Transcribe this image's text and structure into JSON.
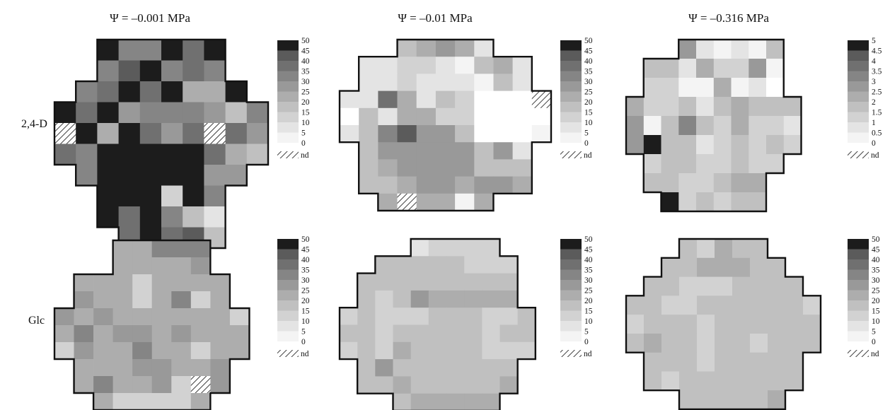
{
  "column_titles": [
    "Ψ = –0.001 MPa",
    "Ψ = –0.01 MPa",
    "Ψ = –0.316 MPa"
  ],
  "row_labels": [
    "2,4-D",
    "Glc"
  ],
  "legend_nd": "nd",
  "gray_palette": [
    "#f4f4f4",
    "#e4e4e4",
    "#d2d2d2",
    "#c0c0c0",
    "#adadad",
    "#999999",
    "#858585",
    "#707070",
    "#5b5b5b",
    "#1c1c1c"
  ],
  "chart_data": [
    {
      "type": "heatmap",
      "row": "2,4-D",
      "column": "Ψ = –0.001 MPa",
      "scale_ticks": [
        "50",
        "45",
        "40",
        "35",
        "30",
        "25",
        "20",
        "15",
        "10",
        "5",
        "0"
      ],
      "vmax": 50,
      "grid": [
        [
          null,
          null,
          50,
          35,
          35,
          50,
          38,
          50,
          null,
          null
        ],
        [
          null,
          null,
          32,
          42,
          50,
          32,
          38,
          32,
          null,
          null
        ],
        [
          null,
          32,
          40,
          50,
          38,
          50,
          22,
          22,
          50,
          null
        ],
        [
          50,
          36,
          50,
          30,
          32,
          34,
          32,
          30,
          20,
          32
        ],
        [
          "nd",
          50,
          22,
          50,
          38,
          30,
          40,
          "nd",
          36,
          28
        ],
        [
          36,
          32,
          50,
          50,
          50,
          50,
          50,
          38,
          22,
          20
        ],
        [
          null,
          32,
          50,
          50,
          50,
          50,
          50,
          30,
          30,
          null
        ],
        [
          null,
          null,
          50,
          50,
          50,
          15,
          50,
          32,
          null,
          null
        ],
        [
          null,
          null,
          50,
          40,
          50,
          32,
          20,
          10,
          null,
          null
        ],
        [
          null,
          null,
          null,
          40,
          50,
          40,
          42,
          20,
          null,
          null
        ]
      ]
    },
    {
      "type": "heatmap",
      "row": "2,4-D",
      "column": "Ψ = –0.01 MPa",
      "scale_ticks": [
        "50",
        "45",
        "40",
        "35",
        "30",
        "25",
        "20",
        "15",
        "10",
        "5",
        "0"
      ],
      "vmax": 50,
      "grid": [
        [
          null,
          null,
          null,
          20,
          25,
          28,
          22,
          8,
          null,
          null,
          null
        ],
        [
          null,
          8,
          8,
          12,
          12,
          8,
          5,
          18,
          24,
          8,
          null
        ],
        [
          null,
          8,
          8,
          12,
          8,
          8,
          8,
          5,
          20,
          8,
          null
        ],
        [
          8,
          8,
          38,
          22,
          8,
          20,
          12,
          0,
          0,
          0,
          "nd"
        ],
        [
          0,
          20,
          10,
          24,
          22,
          14,
          12,
          0,
          0,
          0,
          0
        ],
        [
          8,
          20,
          34,
          42,
          28,
          26,
          18,
          0,
          0,
          0,
          5
        ],
        [
          null,
          18,
          26,
          30,
          30,
          26,
          30,
          16,
          26,
          10,
          null
        ],
        [
          null,
          18,
          24,
          28,
          30,
          28,
          30,
          18,
          18,
          18,
          null
        ],
        [
          null,
          18,
          16,
          24,
          30,
          28,
          24,
          30,
          26,
          24,
          null
        ],
        [
          null,
          null,
          24,
          "nd",
          24,
          24,
          4,
          22,
          null,
          null,
          null
        ]
      ]
    },
    {
      "type": "heatmap",
      "row": "2,4-D",
      "column": "Ψ = –0.316 MPa",
      "scale_ticks": [
        "5",
        "4.5",
        "4",
        "3.5",
        "3",
        "2.5",
        "2",
        "1.5",
        "1",
        "0.5",
        "0",
        "nd"
      ],
      "vmax": 5,
      "grid": [
        [
          null,
          null,
          null,
          3,
          1,
          0.5,
          1,
          0.5,
          2,
          null,
          null,
          null
        ],
        [
          null,
          2,
          2,
          1,
          2.5,
          1.5,
          1.5,
          3,
          0.5,
          null,
          null,
          null
        ],
        [
          null,
          1.5,
          1.5,
          0.5,
          0.5,
          2.5,
          0.5,
          1,
          0,
          null,
          null,
          null
        ],
        [
          2.5,
          1.5,
          1.5,
          2,
          1,
          2,
          2.5,
          2,
          2,
          2,
          null,
          null
        ],
        [
          3,
          0.5,
          2,
          3.5,
          2,
          1.5,
          2.5,
          1.5,
          1.5,
          1,
          null,
          null
        ],
        [
          3,
          5,
          2,
          2,
          1,
          1.5,
          2,
          1.5,
          2,
          1.5,
          null,
          null
        ],
        [
          null,
          1.5,
          2,
          2,
          1.5,
          1.5,
          2,
          1.5,
          1.5,
          null,
          null,
          null
        ],
        [
          null,
          2,
          2,
          1.5,
          1.5,
          2,
          2.5,
          2.5,
          null,
          null,
          null,
          null
        ],
        [
          null,
          null,
          5,
          1.5,
          2,
          1.5,
          2,
          2,
          null,
          null,
          null,
          null
        ]
      ]
    },
    {
      "type": "heatmap",
      "row": "Glc",
      "column": "Ψ = –0.001 MPa",
      "scale_ticks": [
        "50",
        "45",
        "40",
        "35",
        "30",
        "25",
        "20",
        "15",
        "10",
        "5",
        "0"
      ],
      "vmax": 50,
      "grid": [
        [
          null,
          null,
          null,
          22,
          22,
          32,
          32,
          32,
          null,
          null,
          null
        ],
        [
          null,
          null,
          null,
          22,
          22,
          22,
          22,
          28,
          null,
          null,
          null
        ],
        [
          null,
          22,
          22,
          22,
          15,
          22,
          22,
          22,
          22,
          null,
          null
        ],
        [
          null,
          28,
          22,
          22,
          15,
          22,
          32,
          15,
          22,
          null,
          null
        ],
        [
          26,
          22,
          26,
          22,
          22,
          22,
          22,
          22,
          22,
          15,
          null
        ],
        [
          22,
          32,
          22,
          30,
          30,
          22,
          30,
          22,
          22,
          22,
          null
        ],
        [
          15,
          26,
          22,
          22,
          32,
          22,
          22,
          15,
          22,
          22,
          null
        ],
        [
          null,
          22,
          22,
          22,
          26,
          26,
          22,
          22,
          26,
          null,
          null
        ],
        [
          null,
          22,
          32,
          22,
          22,
          26,
          15,
          "nd",
          26,
          null,
          null
        ],
        [
          null,
          null,
          22,
          15,
          15,
          15,
          15,
          22,
          null,
          null,
          null
        ]
      ]
    },
    {
      "type": "heatmap",
      "row": "Glc",
      "column": "Ψ = –0.01 MPa",
      "scale_ticks": [
        "50",
        "45",
        "40",
        "35",
        "30",
        "25",
        "20",
        "15",
        "10",
        "5",
        "0"
      ],
      "vmax": 50,
      "grid": [
        [
          null,
          null,
          null,
          null,
          10,
          15,
          15,
          15,
          15,
          null,
          null,
          null
        ],
        [
          null,
          null,
          18,
          18,
          18,
          18,
          18,
          15,
          15,
          15,
          null,
          null
        ],
        [
          null,
          18,
          18,
          18,
          18,
          18,
          18,
          18,
          18,
          18,
          null,
          null
        ],
        [
          null,
          18,
          15,
          18,
          28,
          22,
          22,
          22,
          22,
          22,
          null,
          null
        ],
        [
          15,
          18,
          15,
          15,
          15,
          18,
          18,
          18,
          15,
          15,
          18,
          null
        ],
        [
          18,
          18,
          15,
          18,
          18,
          18,
          18,
          18,
          15,
          18,
          18,
          null
        ],
        [
          15,
          18,
          15,
          24,
          18,
          18,
          18,
          18,
          15,
          15,
          15,
          null
        ],
        [
          null,
          18,
          26,
          18,
          18,
          18,
          18,
          18,
          18,
          18,
          null,
          null
        ],
        [
          null,
          18,
          18,
          22,
          18,
          18,
          18,
          18,
          18,
          22,
          null,
          null
        ],
        [
          null,
          null,
          null,
          18,
          22,
          22,
          22,
          22,
          22,
          null,
          null,
          null
        ]
      ]
    },
    {
      "type": "heatmap",
      "row": "Glc",
      "column": "Ψ = –0.316 MPa",
      "scale_ticks": [
        "50",
        "45",
        "40",
        "35",
        "30",
        "25",
        "20",
        "15",
        "10",
        "5",
        "0",
        "nd"
      ],
      "vmax": 50,
      "grid": [
        [
          null,
          null,
          null,
          18,
          15,
          22,
          18,
          18,
          null,
          null,
          null,
          null
        ],
        [
          null,
          null,
          18,
          18,
          22,
          22,
          22,
          18,
          18,
          null,
          null,
          null
        ],
        [
          null,
          18,
          18,
          15,
          15,
          15,
          18,
          18,
          18,
          18,
          null,
          null
        ],
        [
          18,
          18,
          15,
          15,
          18,
          18,
          18,
          18,
          18,
          18,
          15,
          null
        ],
        [
          15,
          18,
          18,
          18,
          15,
          18,
          18,
          18,
          18,
          18,
          18,
          null
        ],
        [
          18,
          22,
          18,
          18,
          15,
          18,
          18,
          15,
          18,
          18,
          18,
          null
        ],
        [
          null,
          18,
          18,
          18,
          15,
          18,
          18,
          18,
          18,
          18,
          null,
          null
        ],
        [
          null,
          18,
          15,
          18,
          18,
          18,
          18,
          18,
          18,
          18,
          null,
          null
        ],
        [
          null,
          null,
          null,
          18,
          18,
          18,
          18,
          18,
          22,
          null,
          null,
          null
        ]
      ]
    }
  ]
}
